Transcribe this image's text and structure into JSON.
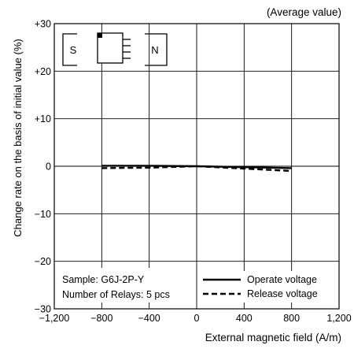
{
  "chart_data": {
    "type": "line",
    "title": "",
    "subtitle": "(Average value)",
    "xlabel": "External magnetic field (A/m)",
    "ylabel": "Change rate on the basis of initial value (%)",
    "xlim": [
      -1200,
      1200
    ],
    "ylim": [
      -30,
      30
    ],
    "x_ticks": [
      -1200,
      -800,
      -400,
      0,
      400,
      800,
      1200
    ],
    "x_tick_labels": [
      "−1,200",
      "−800",
      "−400",
      "0",
      "400",
      "800",
      "1,200"
    ],
    "y_ticks": [
      -30,
      -20,
      -10,
      0,
      10,
      20,
      30
    ],
    "y_tick_labels": [
      "−30",
      "−20",
      "−10",
      "0",
      "+10",
      "+20",
      "+30"
    ],
    "grid": true,
    "legend_position": "bottom-right",
    "series": [
      {
        "name": "Operate voltage",
        "style": "solid",
        "x": [
          -800,
          -400,
          0,
          400,
          800
        ],
        "y": [
          0.1,
          0.1,
          0.0,
          -0.2,
          -0.4
        ]
      },
      {
        "name": "Release voltage",
        "style": "dashed",
        "x": [
          -800,
          -400,
          0,
          400,
          800
        ],
        "y": [
          -0.4,
          -0.3,
          0.0,
          -0.5,
          -1.0
        ]
      }
    ],
    "annotations": {
      "sample_line1": "Sample: G6J-2P-Y",
      "sample_line2": "Number of Relays: 5 pcs",
      "magnet_s": "S",
      "magnet_n": "N"
    }
  }
}
